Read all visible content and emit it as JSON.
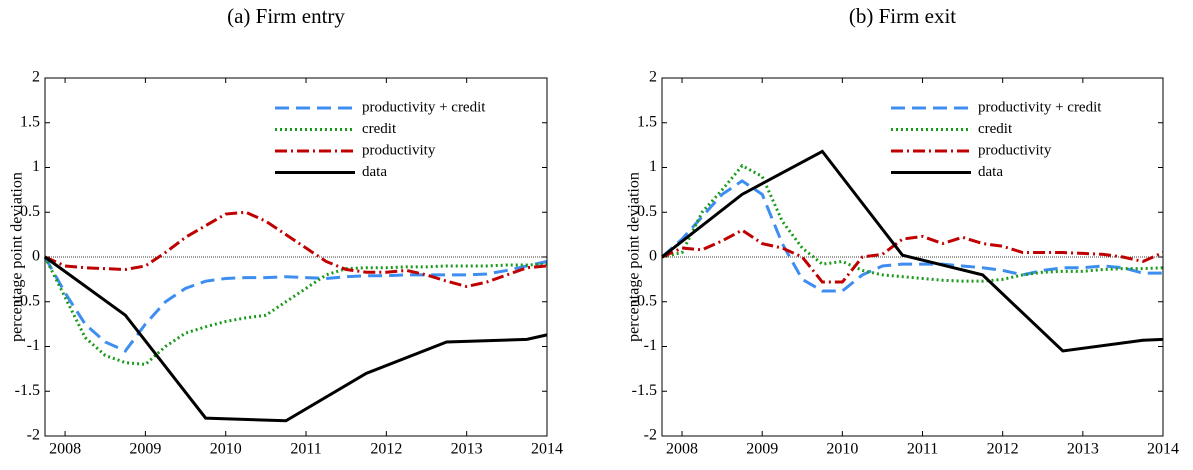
{
  "chart_data": [
    {
      "type": "line",
      "title": "(a)   Firm entry",
      "ylabel": "percentage point deviation",
      "xlim": [
        2007.75,
        2014
      ],
      "xticks": [
        2008,
        2009,
        2010,
        2011,
        2012,
        2013,
        2014
      ],
      "ylim": [
        -2,
        2
      ],
      "yticks": [
        -2,
        -1.5,
        -1,
        -0.5,
        0,
        0.5,
        1,
        1.5,
        2
      ],
      "zero_line": true,
      "legend": "upper right",
      "x": [
        2007.75,
        2008,
        2008.25,
        2008.5,
        2008.75,
        2009,
        2009.25,
        2009.5,
        2009.75,
        2010,
        2010.25,
        2010.5,
        2010.75,
        2011,
        2011.25,
        2011.5,
        2011.75,
        2012,
        2012.25,
        2012.5,
        2012.75,
        2013,
        2013.25,
        2013.5,
        2013.75,
        2014
      ],
      "series": [
        {
          "name": "productivity + credit",
          "color": "#3d8ef0",
          "style": "dashed",
          "values": [
            0,
            -0.4,
            -0.75,
            -0.95,
            -1.05,
            -0.75,
            -0.5,
            -0.35,
            -0.27,
            -0.24,
            -0.23,
            -0.23,
            -0.22,
            -0.23,
            -0.24,
            -0.22,
            -0.21,
            -0.21,
            -0.2,
            -0.2,
            -0.2,
            -0.2,
            -0.19,
            -0.15,
            -0.1,
            -0.05
          ]
        },
        {
          "name": "credit",
          "color": "#1a9a1a",
          "style": "dotted",
          "values": [
            0,
            -0.45,
            -0.9,
            -1.1,
            -1.18,
            -1.2,
            -1.0,
            -0.85,
            -0.78,
            -0.72,
            -0.68,
            -0.65,
            -0.5,
            -0.35,
            -0.2,
            -0.13,
            -0.12,
            -0.12,
            -0.11,
            -0.11,
            -0.1,
            -0.1,
            -0.1,
            -0.09,
            -0.09,
            -0.08
          ]
        },
        {
          "name": "productivity",
          "color": "#c00000",
          "style": "dashdot",
          "values": [
            0,
            -0.1,
            -0.12,
            -0.13,
            -0.14,
            -0.1,
            0.05,
            0.22,
            0.35,
            0.48,
            0.5,
            0.4,
            0.25,
            0.1,
            -0.05,
            -0.14,
            -0.17,
            -0.17,
            -0.15,
            -0.2,
            -0.27,
            -0.33,
            -0.28,
            -0.2,
            -0.12,
            -0.1
          ]
        },
        {
          "name": "data",
          "color": "#000000",
          "style": "solid",
          "x": [
            2007.75,
            2008.75,
            2009.75,
            2010.75,
            2011.75,
            2012.75,
            2013.75,
            2014
          ],
          "values": [
            0,
            -0.65,
            -1.8,
            -1.83,
            -1.3,
            -0.95,
            -0.92,
            -0.87
          ]
        }
      ]
    },
    {
      "type": "line",
      "title": "(b)   Firm exit",
      "ylabel": "percentage point deviation",
      "xlim": [
        2007.75,
        2014
      ],
      "xticks": [
        2008,
        2009,
        2010,
        2011,
        2012,
        2013,
        2014
      ],
      "ylim": [
        -2,
        2
      ],
      "yticks": [
        -2,
        -1.5,
        -1,
        -0.5,
        0,
        0.5,
        1,
        1.5,
        2
      ],
      "zero_line": true,
      "legend": "upper right",
      "x": [
        2007.75,
        2008,
        2008.25,
        2008.5,
        2008.75,
        2009,
        2009.25,
        2009.5,
        2009.75,
        2010,
        2010.25,
        2010.5,
        2010.75,
        2011,
        2011.25,
        2011.5,
        2011.75,
        2012,
        2012.25,
        2012.5,
        2012.75,
        2013,
        2013.25,
        2013.5,
        2013.75,
        2014
      ],
      "series": [
        {
          "name": "productivity + credit",
          "color": "#3d8ef0",
          "style": "dashed",
          "values": [
            0,
            0.2,
            0.45,
            0.7,
            0.85,
            0.7,
            0.15,
            -0.25,
            -0.38,
            -0.38,
            -0.2,
            -0.1,
            -0.08,
            -0.08,
            -0.08,
            -0.1,
            -0.12,
            -0.15,
            -0.2,
            -0.15,
            -0.12,
            -0.12,
            -0.1,
            -0.12,
            -0.18,
            -0.18
          ]
        },
        {
          "name": "credit",
          "color": "#1a9a1a",
          "style": "dotted",
          "values": [
            0,
            0.05,
            0.5,
            0.75,
            1.02,
            0.9,
            0.4,
            0.1,
            -0.08,
            -0.05,
            -0.15,
            -0.2,
            -0.22,
            -0.24,
            -0.26,
            -0.27,
            -0.27,
            -0.25,
            -0.2,
            -0.17,
            -0.16,
            -0.16,
            -0.14,
            -0.13,
            -0.13,
            -0.12
          ]
        },
        {
          "name": "productivity",
          "color": "#c00000",
          "style": "dashdot",
          "values": [
            0,
            0.1,
            0.08,
            0.18,
            0.3,
            0.15,
            0.1,
            0,
            -0.28,
            -0.28,
            0,
            0.03,
            0.2,
            0.23,
            0.15,
            0.22,
            0.15,
            0.12,
            0.05,
            0.05,
            0.05,
            0.04,
            0.03,
            0,
            -0.05,
            0.05
          ]
        },
        {
          "name": "data",
          "color": "#000000",
          "style": "solid",
          "x": [
            2007.75,
            2008.75,
            2009.75,
            2010.75,
            2011.75,
            2012.75,
            2013.75,
            2014
          ],
          "values": [
            0,
            0.7,
            1.18,
            0.02,
            -0.2,
            -1.05,
            -0.93,
            -0.92
          ]
        }
      ]
    }
  ]
}
